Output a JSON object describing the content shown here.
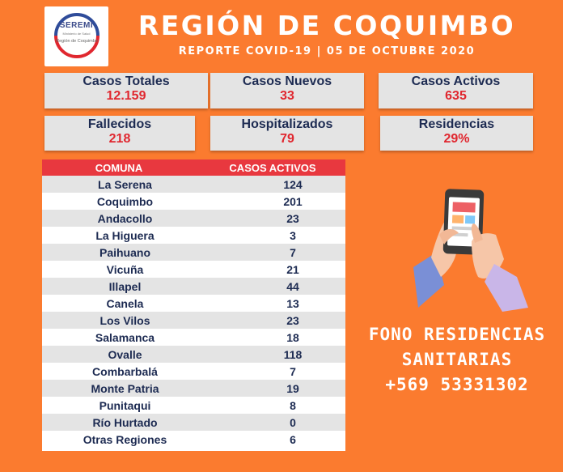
{
  "logo": {
    "title": "SEREMI",
    "subtitle": "Ministerio de Salud",
    "region": "Región de Coquimbo"
  },
  "header": {
    "title": "REGIÓN DE COQUIMBO",
    "subtitle": "REPORTE COVID-19 | 05 DE OCTUBRE 2020"
  },
  "stats": [
    {
      "label": "Casos Totales",
      "value": "12.159"
    },
    {
      "label": "Casos Nuevos",
      "value": "33"
    },
    {
      "label": "Casos Activos",
      "value": "635"
    },
    {
      "label": "Fallecidos",
      "value": "218"
    },
    {
      "label": "Hospitalizados",
      "value": "79"
    },
    {
      "label": "Residencias",
      "value": "29%"
    }
  ],
  "table": {
    "headers": [
      "COMUNA",
      "CASOS ACTIVOS"
    ],
    "rows": [
      {
        "comuna": "La Serena",
        "casos": "124"
      },
      {
        "comuna": "Coquimbo",
        "casos": "201"
      },
      {
        "comuna": "Andacollo",
        "casos": "23"
      },
      {
        "comuna": "La Higuera",
        "casos": "3"
      },
      {
        "comuna": "Paihuano",
        "casos": "7"
      },
      {
        "comuna": "Vicuña",
        "casos": "21"
      },
      {
        "comuna": "Illapel",
        "casos": "44"
      },
      {
        "comuna": "Canela",
        "casos": "13"
      },
      {
        "comuna": "Los Vilos",
        "casos": "23"
      },
      {
        "comuna": "Salamanca",
        "casos": "18"
      },
      {
        "comuna": "Ovalle",
        "casos": "118"
      },
      {
        "comuna": "Combarbalá",
        "casos": "7"
      },
      {
        "comuna": "Monte Patria",
        "casos": "19"
      },
      {
        "comuna": "Punitaqui",
        "casos": "8"
      },
      {
        "comuna": "Río Hurtado",
        "casos": "0"
      },
      {
        "comuna": "Otras Regiones",
        "casos": "6"
      }
    ]
  },
  "fono": {
    "line1": "FONO RESIDENCIAS",
    "line2": "SANITARIAS",
    "line3": "+569 53331302"
  },
  "icons": [
    "seremi-logo-icon",
    "hands-phone-icon"
  ],
  "colors": {
    "background": "#fb7b2f",
    "header_row": "#e8383f",
    "value_red": "#e0272f",
    "text_navy": "#1d2b52"
  }
}
